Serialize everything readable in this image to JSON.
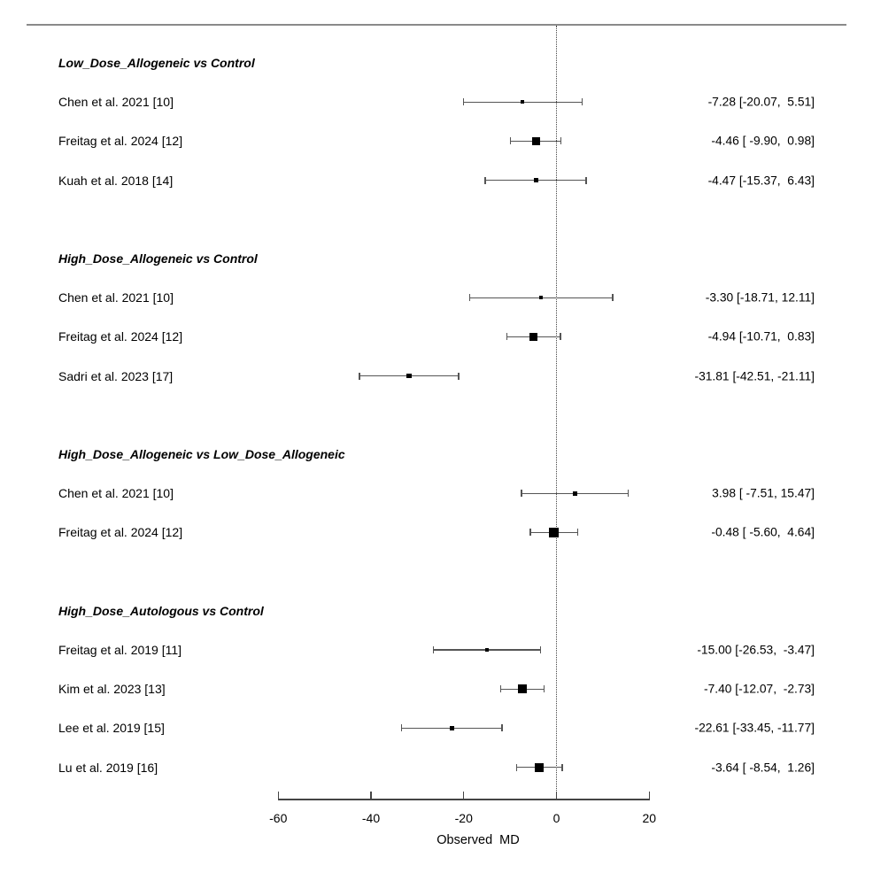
{
  "chart_data": {
    "type": "forest",
    "xlabel": "Observed MD",
    "x_range": [
      -60,
      20
    ],
    "x_ticks": [
      -60,
      -40,
      -20,
      0,
      20
    ],
    "reference_line": 0,
    "groups": [
      {
        "label": "Low_Dose_Allogeneic vs Control",
        "studies": [
          {
            "label": "Chen et al. 2021 [10]",
            "estimate": -7.28,
            "ci_lower": -20.07,
            "ci_upper": 5.51,
            "annotation": "-7.28 [-20.07,  5.51]",
            "marker_size": 4
          },
          {
            "label": "Freitag et al. 2024 [12]",
            "estimate": -4.46,
            "ci_lower": -9.9,
            "ci_upper": 0.98,
            "annotation": "-4.46 [ -9.90,  0.98]",
            "marker_size": 9
          },
          {
            "label": "Kuah et al. 2018 [14]",
            "estimate": -4.47,
            "ci_lower": -15.37,
            "ci_upper": 6.43,
            "annotation": "-4.47 [-15.37,  6.43]",
            "marker_size": 5
          }
        ]
      },
      {
        "label": "High_Dose_Allogeneic vs Control",
        "studies": [
          {
            "label": "Chen et al. 2021 [10]",
            "estimate": -3.3,
            "ci_lower": -18.71,
            "ci_upper": 12.11,
            "annotation": "-3.30 [-18.71, 12.11]",
            "marker_size": 4
          },
          {
            "label": "Freitag et al. 2024 [12]",
            "estimate": -4.94,
            "ci_lower": -10.71,
            "ci_upper": 0.83,
            "annotation": "-4.94 [-10.71,  0.83]",
            "marker_size": 9
          },
          {
            "label": "Sadri et al. 2023 [17]",
            "estimate": -31.81,
            "ci_lower": -42.51,
            "ci_upper": -21.11,
            "annotation": "-31.81 [-42.51, -21.11]",
            "marker_size": 5.5
          }
        ]
      },
      {
        "label": "High_Dose_Allogeneic vs Low_Dose_Allogeneic",
        "studies": [
          {
            "label": "Chen et al. 2021 [10]",
            "estimate": 3.98,
            "ci_lower": -7.51,
            "ci_upper": 15.47,
            "annotation": "3.98 [ -7.51, 15.47]",
            "marker_size": 5
          },
          {
            "label": "Freitag et al. 2024 [12]",
            "estimate": -0.48,
            "ci_lower": -5.6,
            "ci_upper": 4.64,
            "annotation": "-0.48 [ -5.60,  4.64]",
            "marker_size": 11
          }
        ]
      },
      {
        "label": "High_Dose_Autologous vs Control",
        "studies": [
          {
            "label": "Freitag et al. 2019 [11]",
            "estimate": -15.0,
            "ci_lower": -26.53,
            "ci_upper": -3.47,
            "annotation": "-15.00 [-26.53,  -3.47]",
            "marker_size": 4
          },
          {
            "label": "Kim et al. 2023 [13]",
            "estimate": -7.4,
            "ci_lower": -12.07,
            "ci_upper": -2.73,
            "annotation": "-7.40 [-12.07,  -2.73]",
            "marker_size": 10
          },
          {
            "label": "Lee et al. 2019 [15]",
            "estimate": -22.61,
            "ci_lower": -33.45,
            "ci_upper": -11.77,
            "annotation": "-22.61 [-33.45, -11.77]",
            "marker_size": 5
          },
          {
            "label": "Lu et al. 2019 [16]",
            "estimate": -3.64,
            "ci_lower": -8.54,
            "ci_upper": 1.26,
            "annotation": "-3.64 [ -8.54,  1.26]",
            "marker_size": 10
          }
        ]
      }
    ]
  },
  "colors": {
    "line": "#555555",
    "axis": "#444444",
    "marker": "#000000",
    "top_rule": "#8a8a8a",
    "text": "#000000"
  }
}
